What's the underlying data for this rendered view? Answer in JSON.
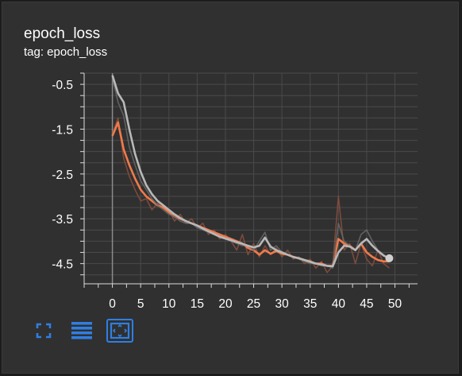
{
  "card": {
    "title": "epoch_loss",
    "tag": "tag: epoch_loss"
  },
  "toolbar": {
    "icons": [
      "fullscreen-icon",
      "data-table-icon",
      "fit-domain-icon"
    ],
    "accent_color": "#2f7fe3",
    "active_index": 2
  },
  "colors": {
    "series_smoothed": "#f07a4a",
    "series_raw": "#8a4f3e",
    "series2_smoothed": "#b8b8b8",
    "series2_raw": "#6a6a6a",
    "grid": "#4a4a4a"
  },
  "chart_data": {
    "type": "line",
    "title": "",
    "xlabel": "",
    "ylabel": "",
    "xlim": [
      -5,
      54
    ],
    "ylim": [
      -4.95,
      -0.25
    ],
    "x_ticks": [
      0,
      5,
      10,
      15,
      20,
      25,
      30,
      35,
      40,
      45,
      50
    ],
    "y_ticks": [
      -0.5,
      -1.5,
      -2.5,
      -3.5,
      -4.5
    ],
    "grid": true,
    "series": [
      {
        "role": "raw",
        "color": "#8a4f3e",
        "x": [
          0,
          1,
          2,
          3,
          4,
          5,
          6,
          7,
          8,
          9,
          10,
          11,
          12,
          13,
          14,
          15,
          16,
          17,
          18,
          19,
          20,
          21,
          22,
          23,
          24,
          25,
          26,
          27,
          28,
          29,
          30,
          31,
          32,
          33,
          34,
          35,
          36,
          37,
          38,
          39,
          40,
          41,
          42,
          43,
          44,
          45,
          46,
          47,
          48,
          49
        ],
        "y": [
          -1.6,
          -1.25,
          -2.15,
          -2.55,
          -2.85,
          -3.1,
          -3.05,
          -3.3,
          -3.15,
          -3.25,
          -3.3,
          -3.55,
          -3.4,
          -3.6,
          -3.5,
          -3.7,
          -3.6,
          -3.85,
          -3.75,
          -3.95,
          -3.85,
          -4.0,
          -4.2,
          -3.85,
          -4.3,
          -4.05,
          -4.35,
          -4.1,
          -4.3,
          -4.15,
          -4.35,
          -4.2,
          -4.4,
          -4.35,
          -4.5,
          -4.4,
          -4.6,
          -4.45,
          -4.7,
          -4.55,
          -3.0,
          -4.2,
          -4.05,
          -4.5,
          -4.05,
          -4.4,
          -4.55,
          -4.2,
          -4.5,
          -4.6
        ]
      },
      {
        "role": "smoothed",
        "color": "#f07a4a",
        "x": [
          0,
          1,
          2,
          3,
          4,
          5,
          6,
          7,
          8,
          9,
          10,
          11,
          12,
          13,
          14,
          15,
          16,
          17,
          18,
          19,
          20,
          21,
          22,
          23,
          24,
          25,
          26,
          27,
          28,
          29,
          30,
          31,
          32,
          33,
          34,
          35,
          36,
          37,
          38,
          39,
          40,
          41,
          42,
          43,
          44,
          45,
          46,
          47,
          48,
          49
        ],
        "y": [
          -1.65,
          -1.35,
          -1.95,
          -2.3,
          -2.6,
          -2.85,
          -3.0,
          -3.1,
          -3.2,
          -3.25,
          -3.35,
          -3.45,
          -3.5,
          -3.55,
          -3.6,
          -3.65,
          -3.7,
          -3.75,
          -3.8,
          -3.85,
          -3.9,
          -3.95,
          -4.0,
          -4.05,
          -4.15,
          -4.2,
          -4.3,
          -4.2,
          -4.28,
          -4.22,
          -4.28,
          -4.3,
          -4.35,
          -4.38,
          -4.42,
          -4.45,
          -4.5,
          -4.5,
          -4.55,
          -4.55,
          -3.95,
          -4.05,
          -4.1,
          -4.2,
          -4.05,
          -4.25,
          -4.35,
          -4.42,
          -4.45,
          -4.45
        ]
      },
      {
        "role": "raw",
        "color": "#6a6a6a",
        "x": [
          0,
          1,
          2,
          3,
          4,
          5,
          6,
          7,
          8,
          9,
          10,
          11,
          12,
          13,
          14,
          15,
          16,
          17,
          18,
          19,
          20,
          21,
          22,
          23,
          24,
          25,
          26,
          27,
          28,
          29,
          30,
          31,
          32,
          33,
          34,
          35,
          36,
          37,
          38,
          39,
          40,
          41,
          42,
          43,
          44,
          45,
          46,
          47,
          48,
          49
        ],
        "y": [
          -0.35,
          -0.9,
          -1.2,
          -1.9,
          -2.3,
          -2.65,
          -2.85,
          -3.05,
          -3.2,
          -3.3,
          -3.4,
          -3.45,
          -3.55,
          -3.6,
          -3.6,
          -3.7,
          -3.75,
          -3.8,
          -3.85,
          -3.9,
          -3.95,
          -4.0,
          -4.05,
          -4.1,
          -4.1,
          -4.2,
          -4.0,
          -3.8,
          -4.2,
          -4.1,
          -4.25,
          -4.3,
          -4.35,
          -4.4,
          -4.45,
          -4.5,
          -4.5,
          -4.55,
          -4.55,
          -4.6,
          -3.6,
          -4.0,
          -4.1,
          -4.2,
          -3.85,
          -3.75,
          -4.0,
          -4.2,
          -4.3,
          -4.4
        ]
      },
      {
        "role": "smoothed",
        "color": "#b8b8b8",
        "x": [
          0,
          1,
          2,
          3,
          4,
          5,
          6,
          7,
          8,
          9,
          10,
          11,
          12,
          13,
          14,
          15,
          16,
          17,
          18,
          19,
          20,
          21,
          22,
          23,
          24,
          25,
          26,
          27,
          28,
          29,
          30,
          31,
          32,
          33,
          34,
          35,
          36,
          37,
          38,
          39,
          40,
          41,
          42,
          43,
          44,
          45,
          46,
          47,
          48,
          49
        ],
        "y": [
          -0.3,
          -0.7,
          -0.9,
          -1.5,
          -2.05,
          -2.45,
          -2.75,
          -2.95,
          -3.1,
          -3.2,
          -3.3,
          -3.4,
          -3.48,
          -3.55,
          -3.6,
          -3.65,
          -3.72,
          -3.78,
          -3.84,
          -3.9,
          -3.94,
          -3.98,
          -4.02,
          -4.06,
          -4.1,
          -4.14,
          -4.1,
          -3.92,
          -4.12,
          -4.2,
          -4.25,
          -4.3,
          -4.35,
          -4.38,
          -4.42,
          -4.46,
          -4.5,
          -4.52,
          -4.55,
          -4.56,
          -4.25,
          -4.1,
          -4.12,
          -4.2,
          -4.05,
          -3.95,
          -4.1,
          -4.22,
          -4.32,
          -4.38
        ]
      }
    ],
    "end_marker": {
      "x": 49,
      "y": -4.38,
      "color": "#cfcfcf"
    }
  }
}
